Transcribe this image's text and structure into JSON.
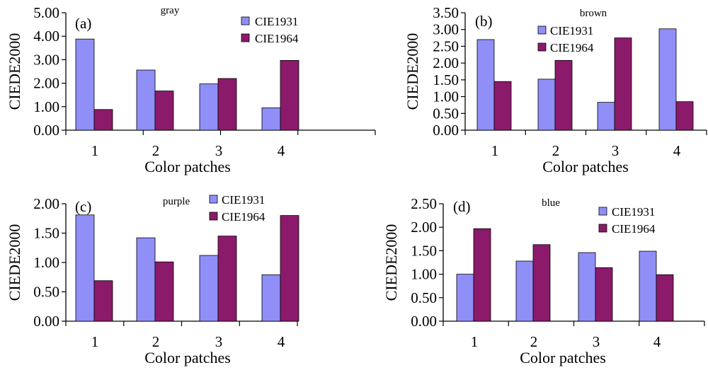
{
  "colors": {
    "CIE1931": "#8f8ff7",
    "CIE1964": "#8b1a6b"
  },
  "chart_data": [
    {
      "type": "bar",
      "panel_label": "(a)",
      "title": "gray",
      "categories": [
        "1",
        "2",
        "3",
        "4"
      ],
      "series": [
        {
          "name": "CIE1931",
          "values": [
            3.88,
            2.56,
            1.97,
            0.95
          ]
        },
        {
          "name": "CIE1964",
          "values": [
            0.88,
            1.67,
            2.2,
            2.97
          ]
        }
      ],
      "xlabel": "Color patches",
      "ylabel": "CIEDE2000",
      "ylim": [
        0,
        5
      ],
      "yticks": [
        "0.00",
        "1.00",
        "2.00",
        "3.00",
        "4.00",
        "5.00"
      ],
      "legend": "top-right"
    },
    {
      "type": "bar",
      "panel_label": "(b)",
      "title": "brown",
      "categories": [
        "1",
        "2",
        "3",
        "4"
      ],
      "series": [
        {
          "name": "CIE1931",
          "values": [
            2.7,
            1.52,
            0.83,
            3.02
          ]
        },
        {
          "name": "CIE1964",
          "values": [
            1.45,
            2.08,
            2.75,
            0.85
          ]
        }
      ],
      "xlabel": "Color patches",
      "ylabel": "CIEDE2000",
      "ylim": [
        0,
        3.5
      ],
      "yticks": [
        "0.00",
        "0.50",
        "1.00",
        "1.50",
        "2.00",
        "2.50",
        "3.00",
        "3.50"
      ],
      "legend": "top-center"
    },
    {
      "type": "bar",
      "panel_label": "(c)",
      "title": "purple",
      "categories": [
        "1",
        "2",
        "3",
        "4"
      ],
      "series": [
        {
          "name": "CIE1931",
          "values": [
            1.81,
            1.42,
            1.12,
            0.79
          ]
        },
        {
          "name": "CIE1964",
          "values": [
            0.69,
            1.01,
            1.45,
            1.8
          ]
        }
      ],
      "xlabel": "Color patches",
      "ylabel": "CIEDE2000",
      "ylim": [
        0,
        2
      ],
      "yticks": [
        "0.00",
        "0.50",
        "1.00",
        "1.50",
        "2.00"
      ],
      "legend": "top-right"
    },
    {
      "type": "bar",
      "panel_label": "(d)",
      "title": "blue",
      "categories": [
        "1",
        "2",
        "3",
        "4"
      ],
      "series": [
        {
          "name": "CIE1931",
          "values": [
            1.0,
            1.28,
            1.46,
            1.49
          ]
        },
        {
          "name": "CIE1964",
          "values": [
            1.97,
            1.63,
            1.14,
            0.99
          ]
        }
      ],
      "xlabel": "Color patches",
      "ylabel": "CIEDE2000",
      "ylim": [
        0,
        2.5
      ],
      "yticks": [
        "0.00",
        "0.50",
        "1.00",
        "1.50",
        "2.00",
        "2.50"
      ],
      "legend": "top-right"
    }
  ]
}
